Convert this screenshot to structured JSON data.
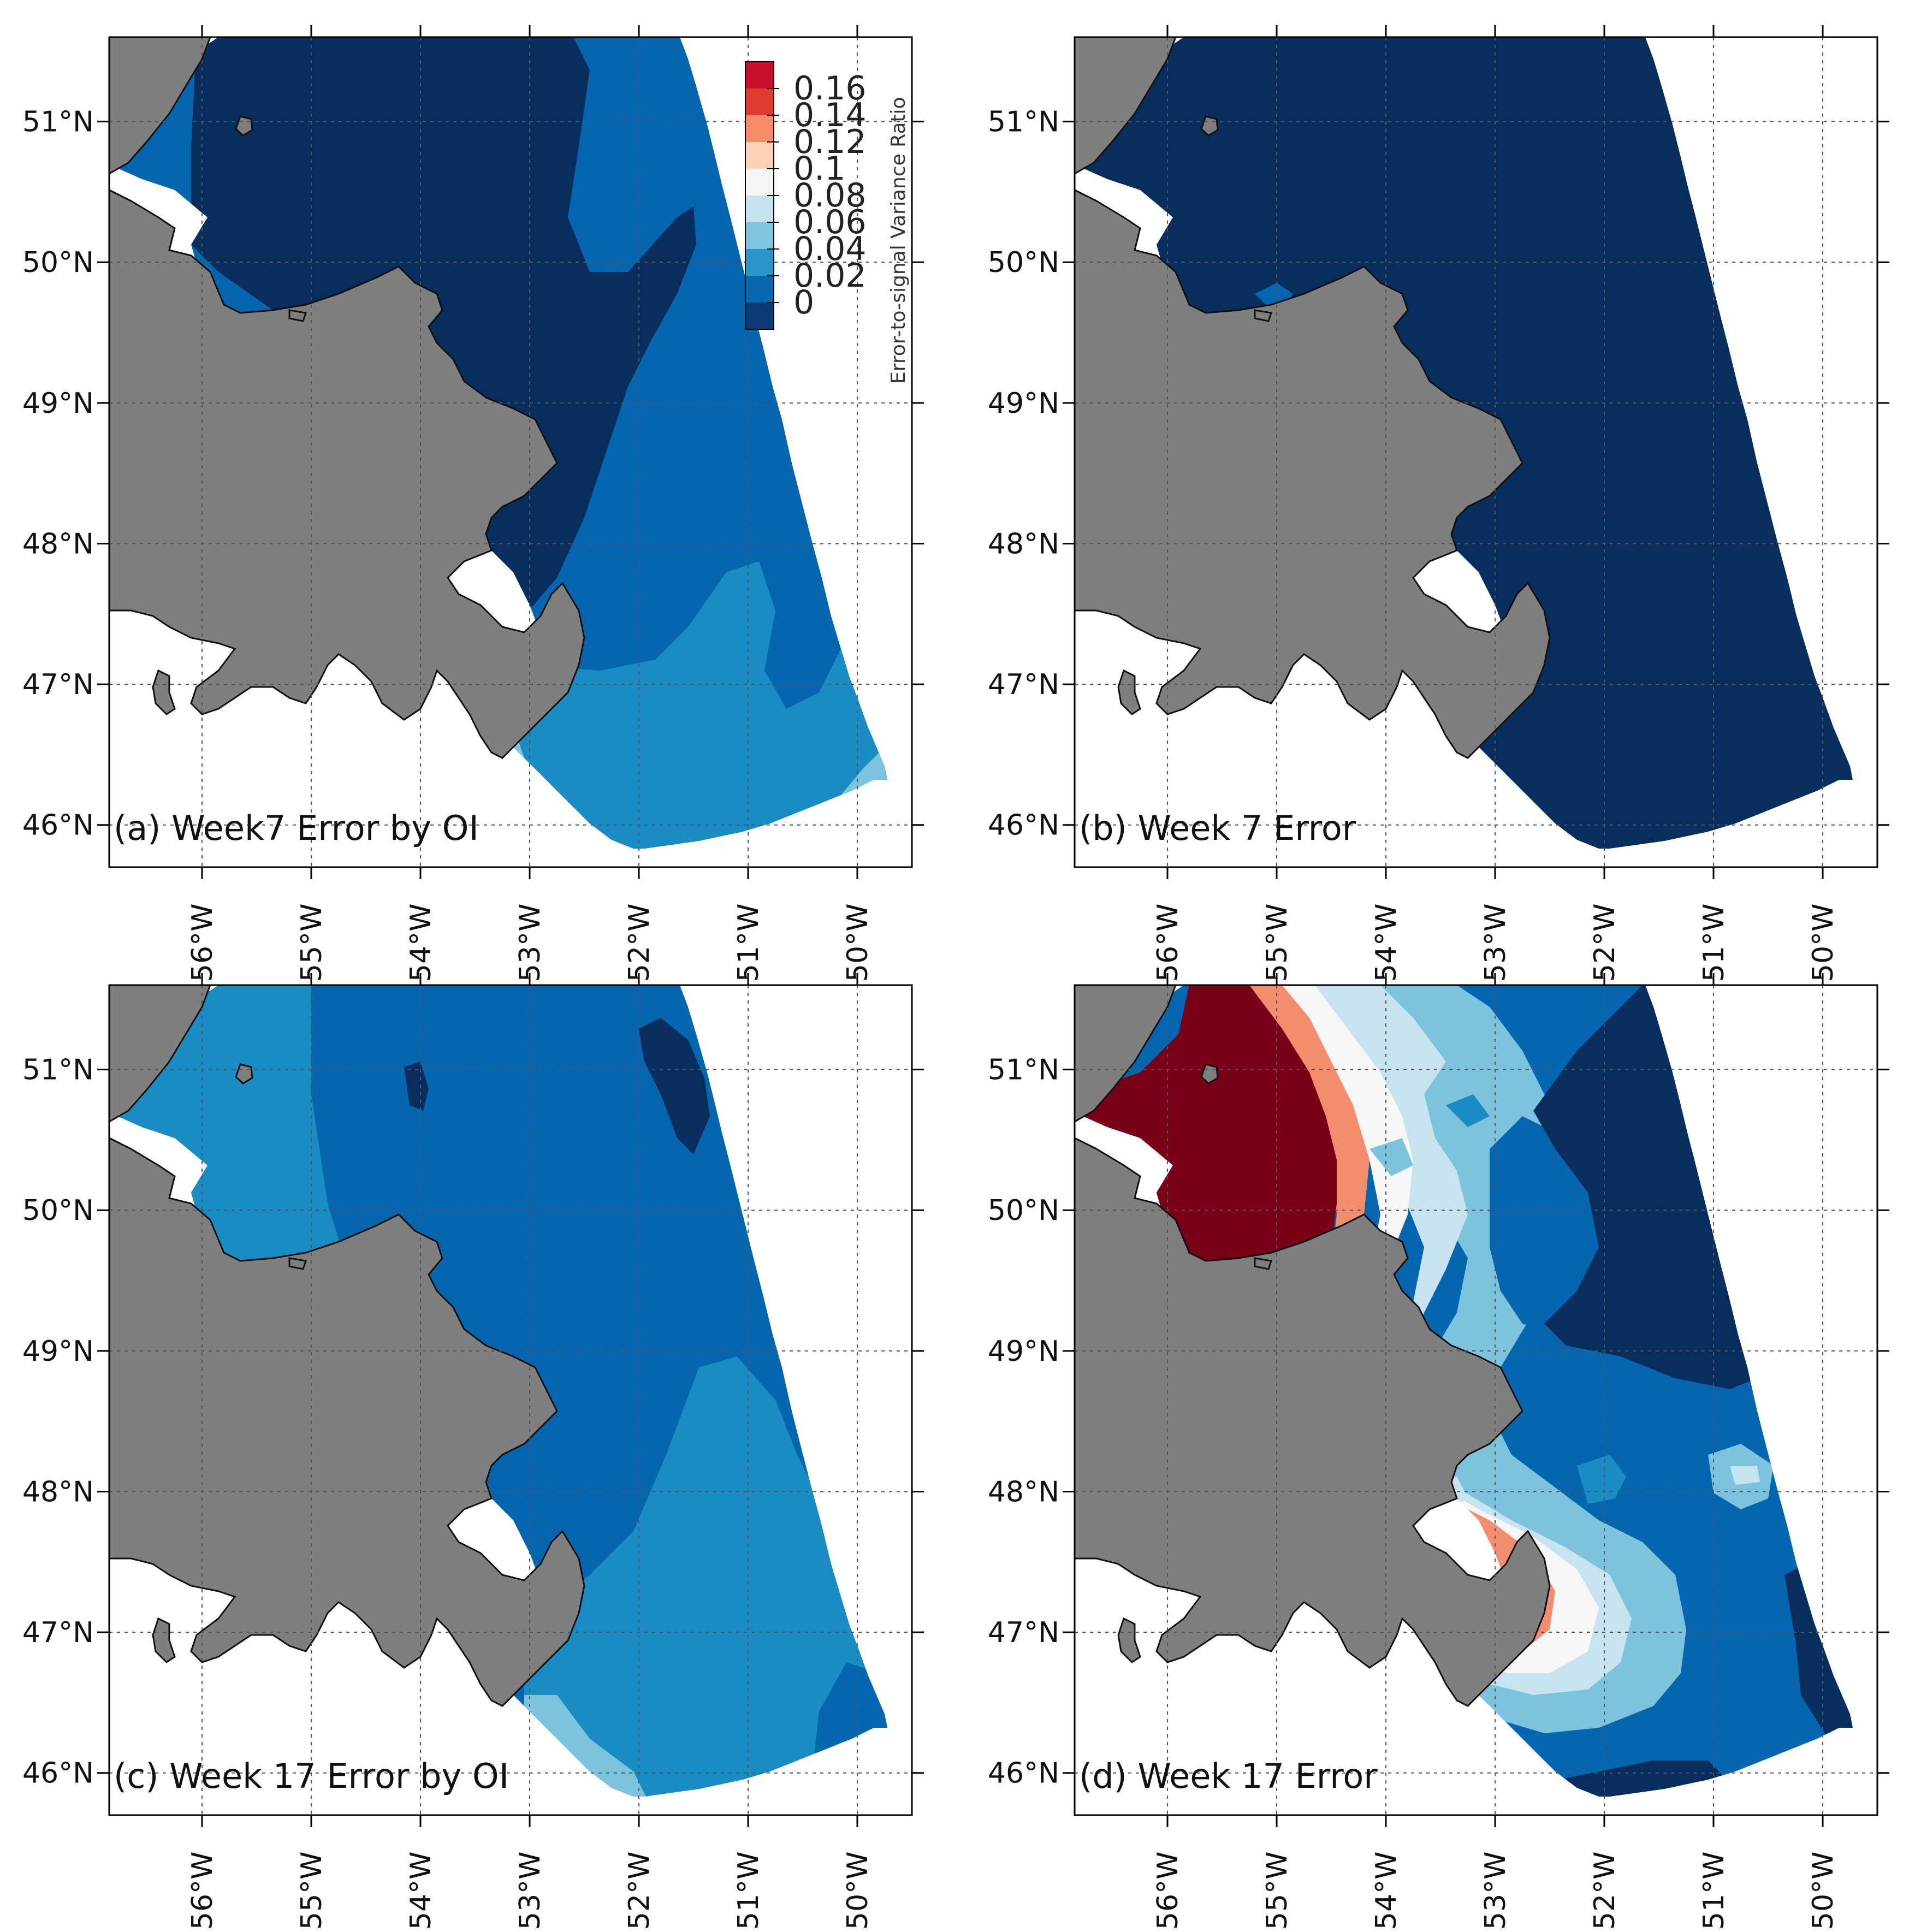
{
  "panels": [
    {
      "id": "a",
      "label": "(a) Week7 Error by OI"
    },
    {
      "id": "b",
      "label": "(b) Week 7 Error"
    },
    {
      "id": "c",
      "label": "(c) Week 17 Error by OI"
    },
    {
      "id": "d",
      "label": "(d) Week 17 Error"
    }
  ],
  "lat_ticks": [
    {
      "value": 51,
      "label": "51°N"
    },
    {
      "value": 50,
      "label": "50°N"
    },
    {
      "value": 49,
      "label": "49°N"
    },
    {
      "value": 48,
      "label": "48°N"
    },
    {
      "value": 47,
      "label": "47°N"
    },
    {
      "value": 46,
      "label": "46°N"
    }
  ],
  "lon_ticks": [
    {
      "value": -56,
      "label": "56°W"
    },
    {
      "value": -55,
      "label": "55°W"
    },
    {
      "value": -54,
      "label": "54°W"
    },
    {
      "value": -53,
      "label": "53°W"
    },
    {
      "value": -52,
      "label": "52°W"
    },
    {
      "value": -51,
      "label": "51°W"
    },
    {
      "value": -50,
      "label": "50°W"
    }
  ],
  "map_extent": {
    "lon_min": -56.85,
    "lon_max": -49.5,
    "lat_min": 45.7,
    "lat_max": 51.6
  },
  "colorbar": {
    "title": "Error-to-signal Variance Ratio",
    "labels": [
      "0.16",
      "0.14",
      "0.12",
      "0.1",
      "0.08",
      "0.06",
      "0.04",
      "0.02",
      "0"
    ],
    "colors_top_to_bottom": [
      "#c8102e",
      "#e03b2f",
      "#f78b6a",
      "#fbd1b8",
      "#f5f5f5",
      "#c6e2ef",
      "#7ec4de",
      "#2a95c8",
      "#0a67ae",
      "#0a3b74"
    ]
  },
  "colors": {
    "land": "#7f7f7f",
    "c0_02": "#082e5e",
    "c02_04": "#0566b0",
    "c04_06": "#1a8cc4",
    "c06_08": "#7cc4de",
    "c08_10": "#c7e3ef",
    "c10_12": "#f6f6f6",
    "c12_14": "#f9c9ae",
    "c14_16": "#f28e6d",
    "c16_18": "#d73a33",
    "c18p": "#7a0018"
  }
}
